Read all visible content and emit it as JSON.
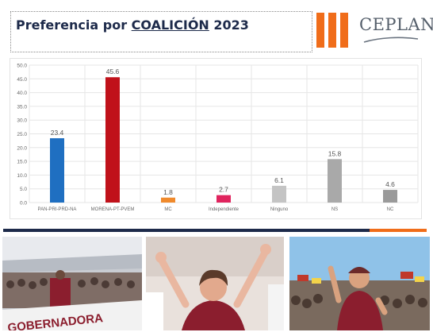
{
  "header": {
    "title_prefix": "Preferencia por",
    "title_emphasis": "COALICIÓN",
    "title_year": "2023"
  },
  "logo": {
    "text": "CEPLAN",
    "colors": {
      "bars": "#f06d1a",
      "text": "#555f6b",
      "swoosh": "#6b7480"
    }
  },
  "colors": {
    "title": "#1d2a4a",
    "divider_dark": "#1d2a4a",
    "divider_accent": "#f06d1a"
  },
  "chart_data": {
    "type": "bar",
    "title": "",
    "xlabel": "",
    "ylabel": "",
    "ylim": [
      0,
      50
    ],
    "yticks": [
      "0.0",
      "5.0",
      "10.0",
      "15.0",
      "20.0",
      "25.0",
      "30.0",
      "35.0",
      "40.0",
      "45.0",
      "50.0"
    ],
    "grid": true,
    "legend": "none",
    "categories": [
      "PAN-PRI-PRD-NA",
      "MORENA-PT-PVEM",
      "MC",
      "Independiente",
      "Ninguno",
      "NS",
      "NC"
    ],
    "values": [
      23.4,
      45.6,
      1.8,
      2.7,
      6.1,
      15.8,
      4.6
    ],
    "value_labels": [
      "23.4",
      "45.6",
      "1.8",
      "2.7",
      "6.1",
      "15.8",
      "4.6"
    ],
    "bar_colors": [
      "#1f6fc1",
      "#c0111a",
      "#f08a2c",
      "#e0245e",
      "#c4c4c4",
      "#a9a9a9",
      "#9a9a9a"
    ]
  },
  "photos": {
    "left": {
      "icon": "campaign-stage-photo",
      "banner_text": "GOBERNADORA"
    },
    "center": {
      "icon": "victory-celebration-photo"
    },
    "right": {
      "icon": "crowd-rally-photo"
    }
  }
}
